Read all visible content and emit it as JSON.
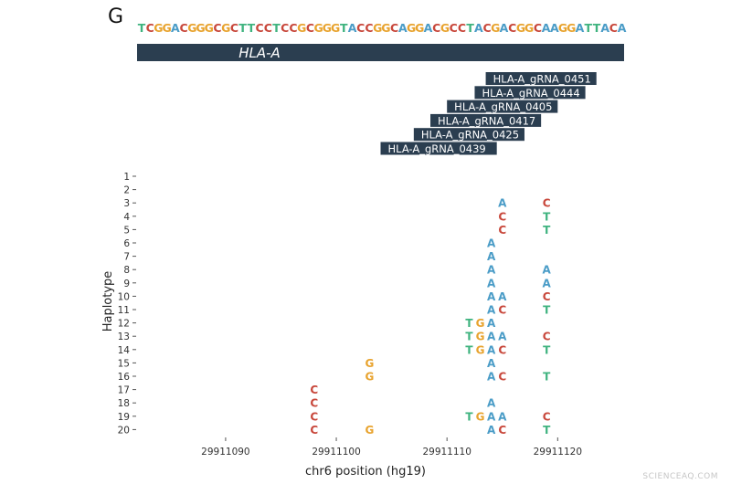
{
  "panel_label": "G",
  "watermark": "SCIENCEAQ.COM",
  "colors": {
    "A": "#4a9cc7",
    "C": "#c8473b",
    "G": "#e8a32e",
    "T": "#3fb37f",
    "bar": "#2b3e50"
  },
  "chart_data": {
    "type": "scatter",
    "xlabel": "chr6 position (hg19)",
    "ylabel": "Haplotype",
    "xlim": [
      29911082,
      29911126
    ],
    "x_ticks": [
      29911090,
      29911100,
      29911110,
      29911120
    ],
    "x_tick_labels": [
      "29911090",
      "29911100",
      "29911110",
      "29911120"
    ],
    "y_ticks": [
      "1",
      "2",
      "3",
      "4",
      "5",
      "6",
      "7",
      "8",
      "9",
      "10",
      "11",
      "12",
      "13",
      "14",
      "15",
      "16",
      "17",
      "18",
      "19",
      "20"
    ],
    "reference_sequence": "TCGGACGGGCGCTTCCTCCGCGGGTACCGGCAGGACGCCTACGACGGCAAGGATTACA",
    "reference_start": 29911082,
    "gene": {
      "name": "HLA-A",
      "start": 29911082,
      "end": 29911126
    },
    "guides": [
      {
        "name": "HLA-A_gRNA_0451",
        "start": 29911113.5,
        "end": 29911123.5
      },
      {
        "name": "HLA-A_gRNA_0444",
        "start": 29911112.5,
        "end": 29911122.5
      },
      {
        "name": "HLA-A_gRNA_0405",
        "start": 29911110,
        "end": 29911120
      },
      {
        "name": "HLA-A_gRNA_0417",
        "start": 29911108.5,
        "end": 29911118.5
      },
      {
        "name": "HLA-A_gRNA_0425",
        "start": 29911107,
        "end": 29911117
      },
      {
        "name": "HLA-A_gRNA_0439",
        "start": 29911104,
        "end": 29911114.5
      }
    ],
    "variants": [
      {
        "haplotype": 3,
        "position": 29911115,
        "base": "A"
      },
      {
        "haplotype": 3,
        "position": 29911119,
        "base": "C"
      },
      {
        "haplotype": 4,
        "position": 29911115,
        "base": "C"
      },
      {
        "haplotype": 4,
        "position": 29911119,
        "base": "T"
      },
      {
        "haplotype": 5,
        "position": 29911115,
        "base": "C"
      },
      {
        "haplotype": 5,
        "position": 29911119,
        "base": "T"
      },
      {
        "haplotype": 6,
        "position": 29911114,
        "base": "A"
      },
      {
        "haplotype": 7,
        "position": 29911114,
        "base": "A"
      },
      {
        "haplotype": 8,
        "position": 29911114,
        "base": "A"
      },
      {
        "haplotype": 8,
        "position": 29911119,
        "base": "A"
      },
      {
        "haplotype": 9,
        "position": 29911114,
        "base": "A"
      },
      {
        "haplotype": 9,
        "position": 29911119,
        "base": "A"
      },
      {
        "haplotype": 10,
        "position": 29911114,
        "base": "A"
      },
      {
        "haplotype": 10,
        "position": 29911115,
        "base": "A"
      },
      {
        "haplotype": 10,
        "position": 29911119,
        "base": "C"
      },
      {
        "haplotype": 11,
        "position": 29911114,
        "base": "A"
      },
      {
        "haplotype": 11,
        "position": 29911115,
        "base": "C"
      },
      {
        "haplotype": 11,
        "position": 29911119,
        "base": "T"
      },
      {
        "haplotype": 12,
        "position": 29911112,
        "base": "T"
      },
      {
        "haplotype": 12,
        "position": 29911113,
        "base": "G"
      },
      {
        "haplotype": 12,
        "position": 29911114,
        "base": "A"
      },
      {
        "haplotype": 13,
        "position": 29911112,
        "base": "T"
      },
      {
        "haplotype": 13,
        "position": 29911113,
        "base": "G"
      },
      {
        "haplotype": 13,
        "position": 29911114,
        "base": "A"
      },
      {
        "haplotype": 13,
        "position": 29911115,
        "base": "A"
      },
      {
        "haplotype": 13,
        "position": 29911119,
        "base": "C"
      },
      {
        "haplotype": 14,
        "position": 29911112,
        "base": "T"
      },
      {
        "haplotype": 14,
        "position": 29911113,
        "base": "G"
      },
      {
        "haplotype": 14,
        "position": 29911114,
        "base": "A"
      },
      {
        "haplotype": 14,
        "position": 29911115,
        "base": "C"
      },
      {
        "haplotype": 14,
        "position": 29911119,
        "base": "T"
      },
      {
        "haplotype": 15,
        "position": 29911103,
        "base": "G"
      },
      {
        "haplotype": 15,
        "position": 29911114,
        "base": "A"
      },
      {
        "haplotype": 16,
        "position": 29911103,
        "base": "G"
      },
      {
        "haplotype": 16,
        "position": 29911114,
        "base": "A"
      },
      {
        "haplotype": 16,
        "position": 29911115,
        "base": "C"
      },
      {
        "haplotype": 16,
        "position": 29911119,
        "base": "T"
      },
      {
        "haplotype": 17,
        "position": 29911098,
        "base": "C"
      },
      {
        "haplotype": 18,
        "position": 29911098,
        "base": "C"
      },
      {
        "haplotype": 18,
        "position": 29911114,
        "base": "A"
      },
      {
        "haplotype": 19,
        "position": 29911098,
        "base": "C"
      },
      {
        "haplotype": 19,
        "position": 29911112,
        "base": "T"
      },
      {
        "haplotype": 19,
        "position": 29911113,
        "base": "G"
      },
      {
        "haplotype": 19,
        "position": 29911114,
        "base": "A"
      },
      {
        "haplotype": 19,
        "position": 29911115,
        "base": "A"
      },
      {
        "haplotype": 19,
        "position": 29911119,
        "base": "C"
      },
      {
        "haplotype": 20,
        "position": 29911098,
        "base": "C"
      },
      {
        "haplotype": 20,
        "position": 29911103,
        "base": "G"
      },
      {
        "haplotype": 20,
        "position": 29911114,
        "base": "A"
      },
      {
        "haplotype": 20,
        "position": 29911115,
        "base": "C"
      },
      {
        "haplotype": 20,
        "position": 29911119,
        "base": "T"
      }
    ]
  }
}
